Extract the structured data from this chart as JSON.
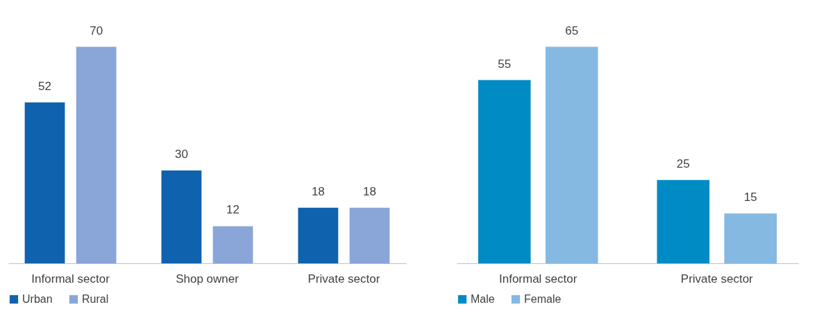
{
  "chart_data": [
    {
      "type": "bar",
      "categories": [
        "Informal sector",
        "Shop owner",
        "Private sector"
      ],
      "series": [
        {
          "name": "Urban",
          "color": "#0f62ae",
          "values": [
            52,
            30,
            18
          ]
        },
        {
          "name": "Rural",
          "color": "#8aa5d8",
          "values": [
            70,
            12,
            18
          ]
        }
      ],
      "data_labels": true,
      "legend": "bottom",
      "grid": false
    },
    {
      "type": "bar",
      "categories": [
        "Informal sector",
        "Private sector"
      ],
      "series": [
        {
          "name": "Male",
          "color": "#008bc4",
          "values": [
            55,
            25
          ]
        },
        {
          "name": "Female",
          "color": "#86b9e2",
          "values": [
            65,
            15
          ]
        }
      ],
      "data_labels": true,
      "legend": "bottom",
      "grid": false
    }
  ]
}
